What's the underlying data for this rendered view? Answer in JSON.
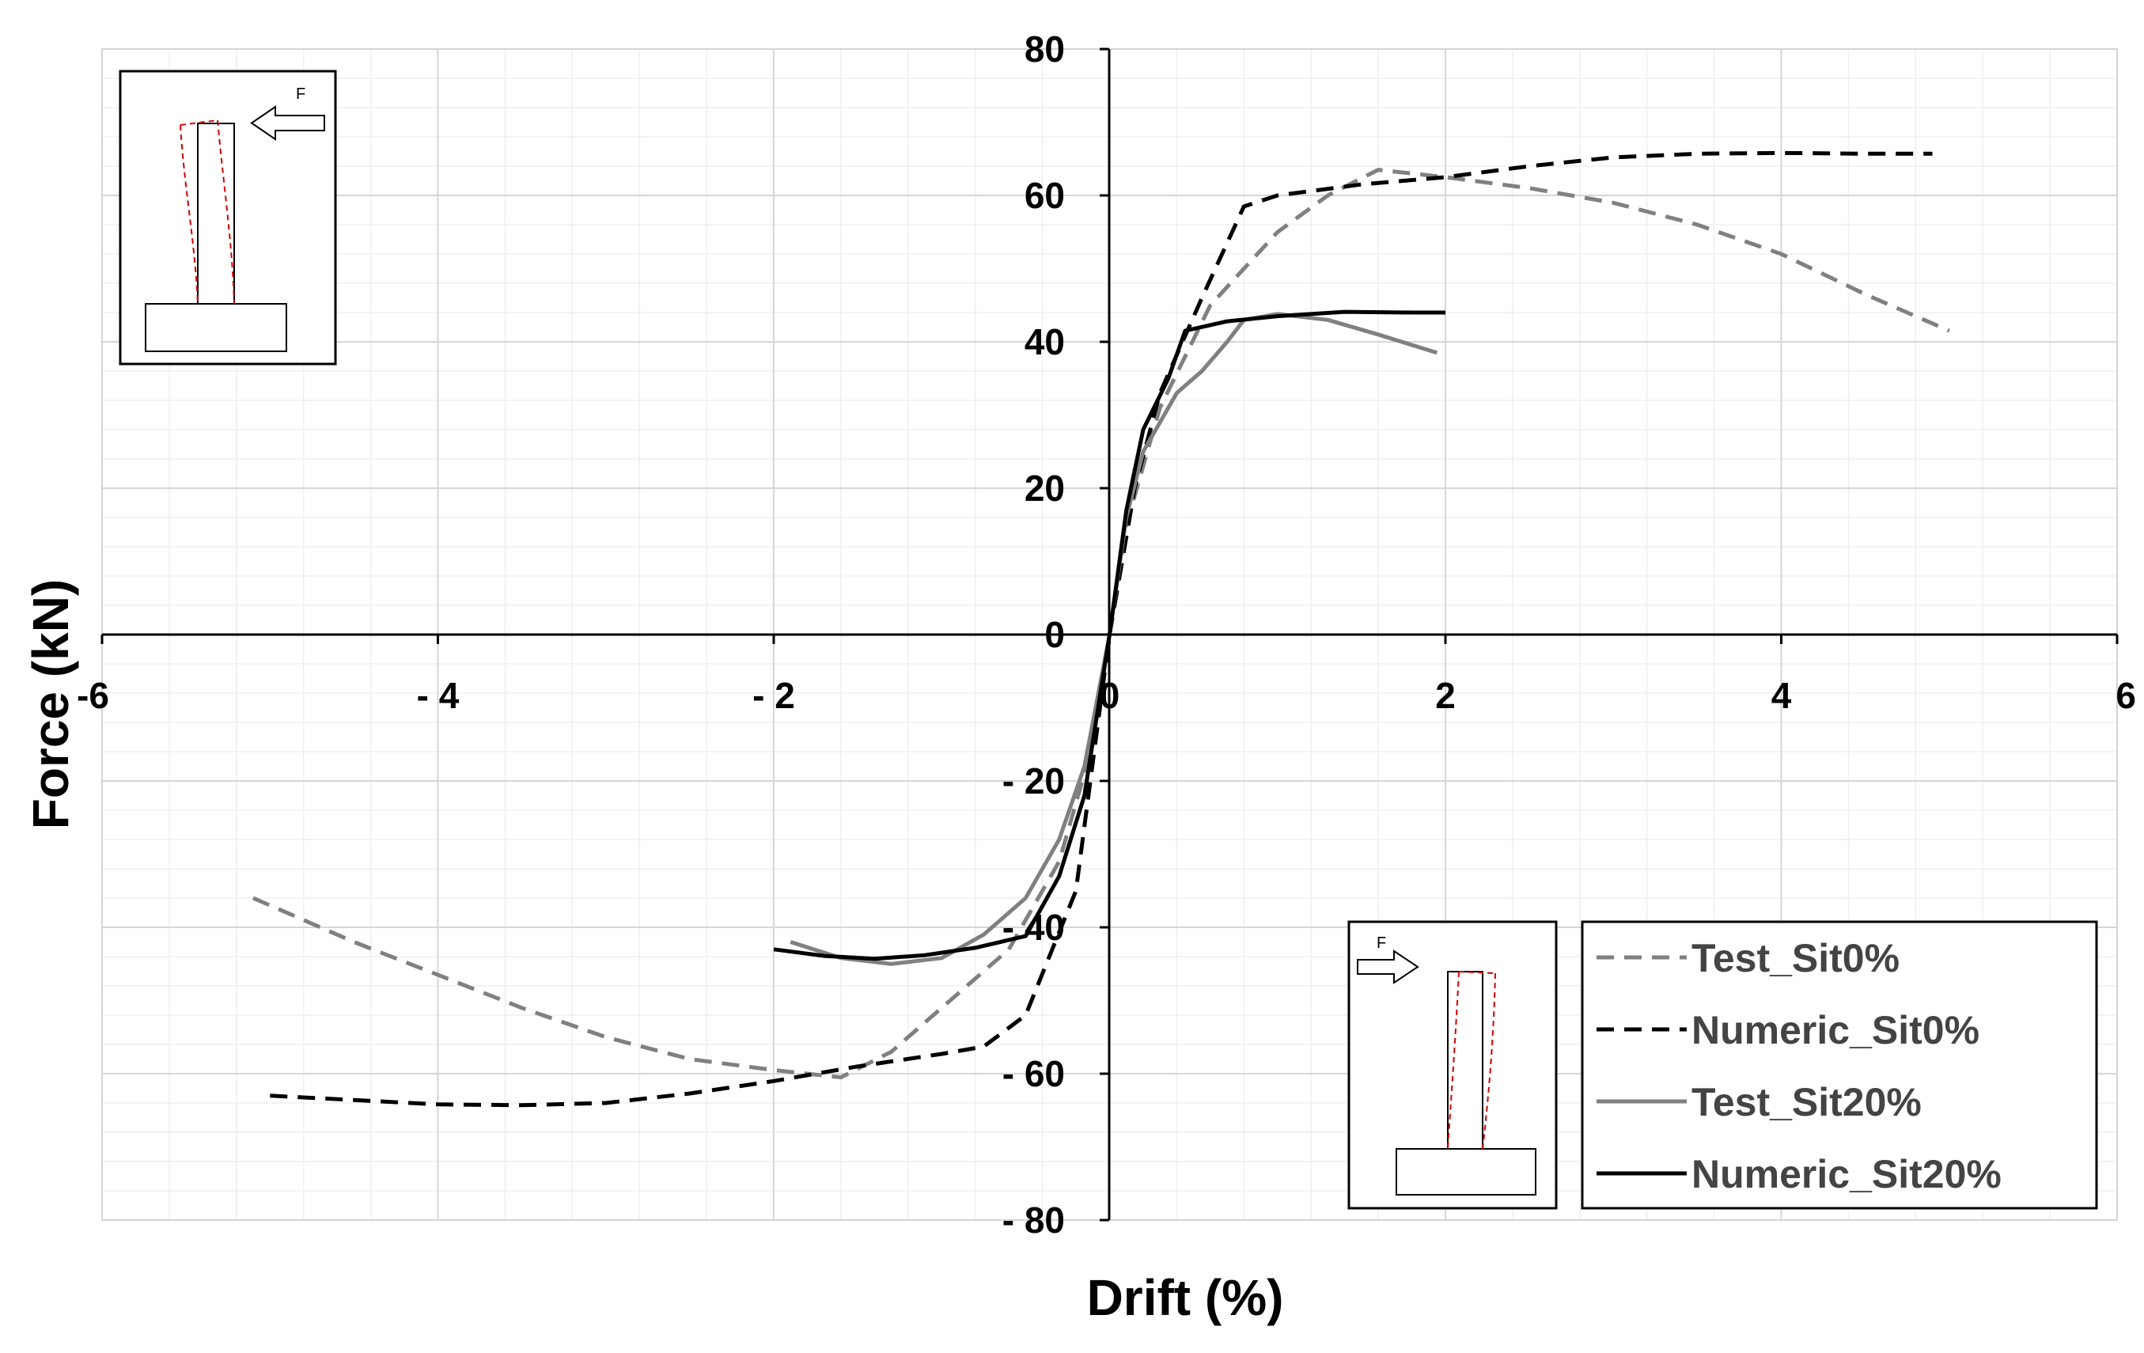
{
  "chart_data": {
    "type": "line",
    "xlabel": "Drift (%)",
    "ylabel": "Force (kN)",
    "xlim": [
      -6,
      6
    ],
    "ylim": [
      -80,
      80
    ],
    "x_ticks": [
      {
        "value": -6,
        "label": "-6"
      },
      {
        "value": -4,
        "label": "- 4"
      },
      {
        "value": -2,
        "label": "- 2"
      },
      {
        "value": 0,
        "label": "0"
      },
      {
        "value": 2,
        "label": "2"
      },
      {
        "value": 4,
        "label": "4"
      },
      {
        "value": 6,
        "label": "6"
      }
    ],
    "y_ticks": [
      {
        "value": 80,
        "label": "80"
      },
      {
        "value": 60,
        "label": "60"
      },
      {
        "value": 40,
        "label": "40"
      },
      {
        "value": 20,
        "label": "20"
      },
      {
        "value": 0,
        "label": "0"
      },
      {
        "value": -20,
        "label": "- 20"
      },
      {
        "value": -40,
        "label": "- 40"
      },
      {
        "value": -60,
        "label": "- 60"
      },
      {
        "value": -80,
        "label": "- 80"
      }
    ],
    "grid": true,
    "legend_position": "bottom-right",
    "series": [
      {
        "name": "Test_Sit0%",
        "color": "#808080",
        "dash": "dashed",
        "points": [
          [
            -5.1,
            -36
          ],
          [
            -4.5,
            -42
          ],
          [
            -4.0,
            -46.5
          ],
          [
            -3.5,
            -51
          ],
          [
            -3.0,
            -55
          ],
          [
            -2.5,
            -58
          ],
          [
            -2.0,
            -59.5
          ],
          [
            -1.6,
            -60.5
          ],
          [
            -1.3,
            -57
          ],
          [
            -1.0,
            -51
          ],
          [
            -0.6,
            -43
          ],
          [
            -0.3,
            -31
          ],
          [
            -0.1,
            -15
          ],
          [
            0,
            0
          ],
          [
            0.1,
            15
          ],
          [
            0.3,
            31
          ],
          [
            0.6,
            45
          ],
          [
            1.0,
            55
          ],
          [
            1.3,
            60
          ],
          [
            1.6,
            63.5
          ],
          [
            2.0,
            62.5
          ],
          [
            2.5,
            61
          ],
          [
            3.0,
            59
          ],
          [
            3.5,
            56
          ],
          [
            4.0,
            52
          ],
          [
            4.5,
            46.5
          ],
          [
            5.0,
            41.5
          ]
        ]
      },
      {
        "name": "Numeric_Sit0%",
        "color": "#000000",
        "dash": "dashed",
        "points": [
          [
            -5.0,
            -63
          ],
          [
            -4.5,
            -63.6
          ],
          [
            -4.0,
            -64.2
          ],
          [
            -3.5,
            -64.3
          ],
          [
            -3.0,
            -64
          ],
          [
            -2.5,
            -62.7
          ],
          [
            -2.0,
            -61
          ],
          [
            -1.5,
            -59
          ],
          [
            -1.0,
            -57.3
          ],
          [
            -0.75,
            -56.3
          ],
          [
            -0.5,
            -52
          ],
          [
            -0.2,
            -35
          ],
          [
            0,
            0
          ],
          [
            0.15,
            20
          ],
          [
            0.3,
            33
          ],
          [
            0.55,
            46
          ],
          [
            0.8,
            58.5
          ],
          [
            1.0,
            60
          ],
          [
            1.5,
            61.5
          ],
          [
            2.0,
            62.5
          ],
          [
            2.5,
            64
          ],
          [
            3.0,
            65.2
          ],
          [
            3.5,
            65.7
          ],
          [
            4.0,
            65.8
          ],
          [
            4.5,
            65.7
          ],
          [
            4.9,
            65.7
          ]
        ]
      },
      {
        "name": "Test_Sit20%",
        "color": "#808080",
        "dash": "solid",
        "points": [
          [
            -1.9,
            -42
          ],
          [
            -1.6,
            -44.2
          ],
          [
            -1.3,
            -45
          ],
          [
            -1.0,
            -44.2
          ],
          [
            -0.75,
            -41
          ],
          [
            -0.5,
            -36
          ],
          [
            -0.3,
            -28
          ],
          [
            -0.15,
            -18
          ],
          [
            0,
            0
          ],
          [
            0.1,
            16
          ],
          [
            0.2,
            25
          ],
          [
            0.4,
            33
          ],
          [
            0.55,
            36
          ],
          [
            0.7,
            40
          ],
          [
            0.8,
            43
          ],
          [
            1.0,
            43.8
          ],
          [
            1.3,
            43
          ],
          [
            1.6,
            41
          ],
          [
            1.95,
            38.5
          ]
        ]
      },
      {
        "name": "Numeric_Sit20%",
        "color": "#000000",
        "dash": "solid",
        "points": [
          [
            -2.0,
            -43
          ],
          [
            -1.7,
            -43.9
          ],
          [
            -1.4,
            -44.3
          ],
          [
            -1.1,
            -43.8
          ],
          [
            -0.8,
            -42.8
          ],
          [
            -0.5,
            -41.2
          ],
          [
            -0.3,
            -33
          ],
          [
            -0.15,
            -22
          ],
          [
            0,
            0
          ],
          [
            0.1,
            17
          ],
          [
            0.2,
            28
          ],
          [
            0.35,
            35
          ],
          [
            0.45,
            41.5
          ],
          [
            0.7,
            42.8
          ],
          [
            1.0,
            43.5
          ],
          [
            1.4,
            44.1
          ],
          [
            1.8,
            44
          ],
          [
            2.0,
            44
          ]
        ]
      }
    ]
  },
  "insets": {
    "top_left_force_label": "F",
    "bottom_right_force_label": "F"
  }
}
